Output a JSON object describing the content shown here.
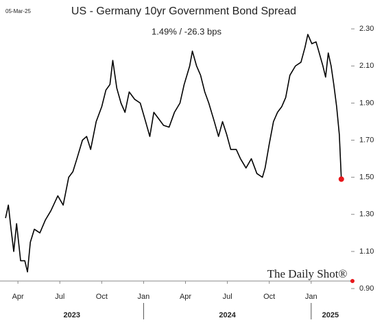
{
  "chart_data": {
    "type": "line",
    "date": "05-Mar-25",
    "title": "US - Germany 10yr Government Bond Spread",
    "subtitle": "1.49%  /  -26.3 bps",
    "source": "The Daily Shot®",
    "x": [
      2023.176,
      2023.193,
      2023.209,
      2023.225,
      2023.242,
      2023.266,
      2023.291,
      2023.307,
      2023.324,
      2023.348,
      2023.381,
      2023.414,
      2023.447,
      2023.488,
      2023.52,
      2023.553,
      2023.578,
      2023.602,
      2023.635,
      2023.66,
      2023.684,
      2023.717,
      2023.75,
      2023.775,
      2023.799,
      2023.816,
      2023.84,
      2023.865,
      2023.889,
      2023.914,
      2023.947,
      2023.98,
      2024.012,
      2024.037,
      2024.061,
      2024.086,
      2024.119,
      2024.152,
      2024.184,
      2024.217,
      2024.242,
      2024.275,
      2024.291,
      2024.316,
      2024.34,
      2024.365,
      2024.389,
      2024.422,
      2024.447,
      2024.471,
      2024.496,
      2024.52,
      2024.553,
      2024.578,
      2024.611,
      2024.643,
      2024.676,
      2024.709,
      2024.725,
      2024.75,
      2024.775,
      2024.799,
      2024.824,
      2024.848,
      2024.873,
      2024.906,
      2024.939,
      2024.963,
      2024.98,
      2025.004,
      2025.029,
      2025.045,
      2025.07,
      2025.086,
      2025.102,
      2025.119,
      2025.135,
      2025.152,
      2025.168,
      2025.18
    ],
    "series": [
      {
        "name": "US - Germany spread",
        "color": "#000000",
        "end_color": "#e8171b",
        "values": [
          1.28,
          1.35,
          1.22,
          1.1,
          1.25,
          1.05,
          1.05,
          0.99,
          1.15,
          1.22,
          1.2,
          1.27,
          1.32,
          1.4,
          1.35,
          1.5,
          1.53,
          1.6,
          1.7,
          1.72,
          1.65,
          1.8,
          1.88,
          1.97,
          2.0,
          2.13,
          1.98,
          1.9,
          1.85,
          1.96,
          1.92,
          1.9,
          1.8,
          1.72,
          1.85,
          1.82,
          1.78,
          1.77,
          1.85,
          1.9,
          2.0,
          2.1,
          2.18,
          2.1,
          2.05,
          1.96,
          1.9,
          1.8,
          1.72,
          1.8,
          1.73,
          1.65,
          1.65,
          1.6,
          1.55,
          1.6,
          1.52,
          1.5,
          1.55,
          1.68,
          1.8,
          1.85,
          1.88,
          1.93,
          2.05,
          2.1,
          2.12,
          2.2,
          2.27,
          2.22,
          2.23,
          2.18,
          2.1,
          2.04,
          2.17,
          2.1,
          2.0,
          1.88,
          1.73,
          1.49
        ]
      }
    ],
    "xlim": [
      2023.143,
      2025.23
    ],
    "xticks": [
      {
        "value": 2023.25,
        "label": "Apr"
      },
      {
        "value": 2023.5,
        "label": "Jul"
      },
      {
        "value": 2023.75,
        "label": "Oct"
      },
      {
        "value": 2024.0,
        "label": "Jan"
      },
      {
        "value": 2024.25,
        "label": "Apr"
      },
      {
        "value": 2024.5,
        "label": "Jul"
      },
      {
        "value": 2024.75,
        "label": "Oct"
      },
      {
        "value": 2025.0,
        "label": "Jan"
      }
    ],
    "year_breaks": [
      2024,
      2025
    ],
    "year_labels": [
      "2023",
      "2024",
      "2025"
    ],
    "ylim": [
      0.9,
      2.33
    ],
    "yticks": [
      {
        "value": 0.9,
        "label": "0.90"
      },
      {
        "value": 1.1,
        "label": "1.10"
      },
      {
        "value": 1.3,
        "label": "1.30"
      },
      {
        "value": 1.5,
        "label": "1.50"
      },
      {
        "value": 1.7,
        "label": "1.70"
      },
      {
        "value": 1.9,
        "label": "1.90"
      },
      {
        "value": 2.1,
        "label": "2.10"
      },
      {
        "value": 2.3,
        "label": "2.30"
      }
    ]
  }
}
